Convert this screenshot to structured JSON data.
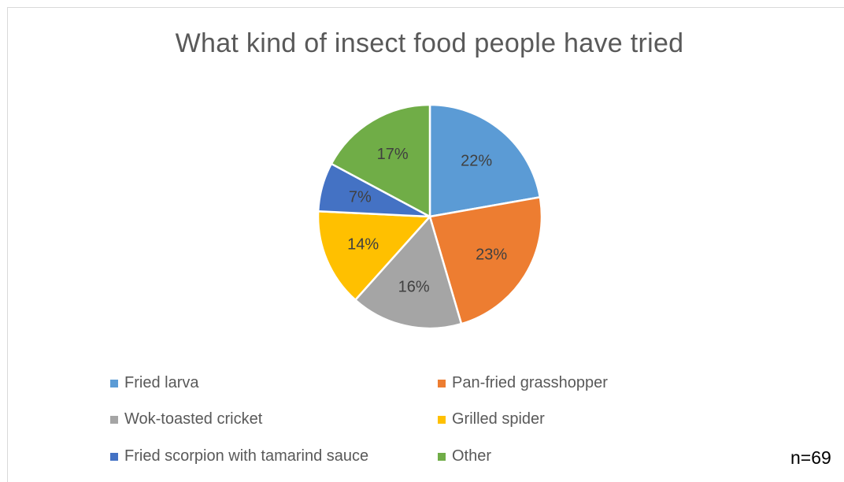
{
  "chart_data": {
    "type": "pie",
    "title": "What kind of insect food people have tried",
    "labels": [
      "Fried larva",
      "Pan-fried grasshopper",
      "Wok-toasted cricket",
      "Grilled spider",
      "Fried scorpion with tamarind sauce",
      "Other"
    ],
    "values": [
      22,
      23,
      16,
      14,
      7,
      17
    ],
    "data_labels": [
      "22%",
      "23%",
      "16%",
      "14%",
      "7%",
      "17%"
    ],
    "colors": [
      "#5b9bd5",
      "#ed7d31",
      "#a5a5a5",
      "#ffc000",
      "#4472c4",
      "#70ad47"
    ],
    "legend": {
      "placement": "bottom",
      "columns": 2
    },
    "note": "n=69"
  }
}
